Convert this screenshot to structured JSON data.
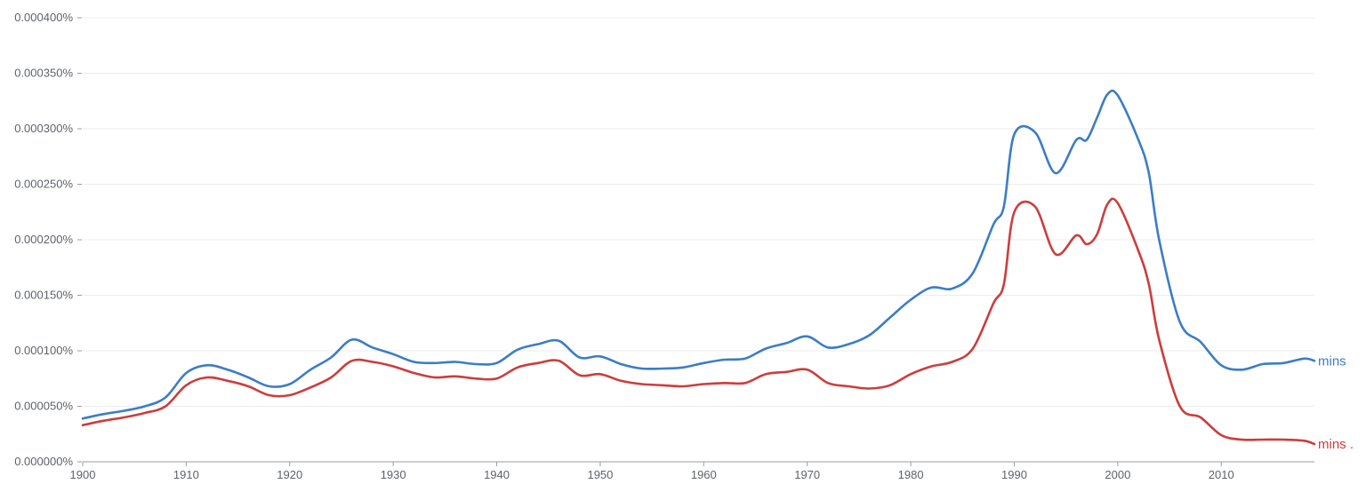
{
  "chart_data": {
    "type": "line",
    "title": "",
    "xlabel": "",
    "ylabel": "",
    "xlim": [
      1900,
      2019
    ],
    "ylim": [
      0,
      4e-06
    ],
    "x_ticks": [
      1900,
      1910,
      1920,
      1930,
      1940,
      1950,
      1960,
      1970,
      1980,
      1990,
      2000,
      2010
    ],
    "x_tick_labels": [
      "1900",
      "1910",
      "1920",
      "1930",
      "1940",
      "1950",
      "1960",
      "1970",
      "1980",
      "1990",
      "2000",
      "2010"
    ],
    "y_ticks": [
      0,
      5e-07,
      1e-06,
      1.5e-06,
      2e-06,
      2.5e-06,
      3e-06,
      3.5e-06,
      4e-06
    ],
    "y_tick_labels": [
      "0.000000%",
      "0.000050%",
      "0.000100%",
      "0.000150%",
      "0.000200%",
      "0.000250%",
      "0.000300%",
      "0.000350%",
      "0.000400%"
    ],
    "grid": true,
    "legend": "labels at line ends (right)",
    "series": [
      {
        "name": "mins",
        "color": "#3b7dc6",
        "points": [
          [
            1900,
            3.9e-07
          ],
          [
            1902,
            4.3e-07
          ],
          [
            1904,
            4.6e-07
          ],
          [
            1906,
            5e-07
          ],
          [
            1908,
            5.8e-07
          ],
          [
            1910,
            8e-07
          ],
          [
            1912,
            8.7e-07
          ],
          [
            1914,
            8.3e-07
          ],
          [
            1916,
            7.6e-07
          ],
          [
            1918,
            6.8e-07
          ],
          [
            1920,
            7e-07
          ],
          [
            1922,
            8.3e-07
          ],
          [
            1924,
            9.4e-07
          ],
          [
            1926,
            1.1e-06
          ],
          [
            1928,
            1.03e-06
          ],
          [
            1930,
            9.7e-07
          ],
          [
            1932,
            9e-07
          ],
          [
            1934,
            8.9e-07
          ],
          [
            1936,
            9e-07
          ],
          [
            1938,
            8.8e-07
          ],
          [
            1940,
            8.9e-07
          ],
          [
            1942,
            1.01e-06
          ],
          [
            1944,
            1.06e-06
          ],
          [
            1946,
            1.09e-06
          ],
          [
            1948,
            9.4e-07
          ],
          [
            1950,
            9.5e-07
          ],
          [
            1952,
            8.8e-07
          ],
          [
            1954,
            8.4e-07
          ],
          [
            1956,
            8.4e-07
          ],
          [
            1958,
            8.5e-07
          ],
          [
            1960,
            8.9e-07
          ],
          [
            1962,
            9.2e-07
          ],
          [
            1964,
            9.3e-07
          ],
          [
            1966,
            1.02e-06
          ],
          [
            1968,
            1.07e-06
          ],
          [
            1970,
            1.13e-06
          ],
          [
            1972,
            1.03e-06
          ],
          [
            1974,
            1.06e-06
          ],
          [
            1976,
            1.14e-06
          ],
          [
            1978,
            1.3e-06
          ],
          [
            1980,
            1.46e-06
          ],
          [
            1982,
            1.57e-06
          ],
          [
            1984,
            1.56e-06
          ],
          [
            1986,
            1.7e-06
          ],
          [
            1988,
            2.14e-06
          ],
          [
            1989,
            2.3e-06
          ],
          [
            1990,
            2.95e-06
          ],
          [
            1992,
            2.97e-06
          ],
          [
            1994,
            2.6e-06
          ],
          [
            1996,
            2.9e-06
          ],
          [
            1997,
            2.9e-06
          ],
          [
            1998,
            3.1e-06
          ],
          [
            1999,
            3.31e-06
          ],
          [
            2000,
            3.3e-06
          ],
          [
            2002,
            2.9e-06
          ],
          [
            2003,
            2.6e-06
          ],
          [
            2004,
            2e-06
          ],
          [
            2006,
            1.26e-06
          ],
          [
            2008,
            1.08e-06
          ],
          [
            2010,
            8.7e-07
          ],
          [
            2012,
            8.3e-07
          ],
          [
            2014,
            8.8e-07
          ],
          [
            2016,
            8.9e-07
          ],
          [
            2018,
            9.3e-07
          ],
          [
            2019,
            9.1e-07
          ]
        ]
      },
      {
        "name": "mins .",
        "color": "#cc3d3d",
        "points": [
          [
            1900,
            3.3e-07
          ],
          [
            1902,
            3.7e-07
          ],
          [
            1904,
            4e-07
          ],
          [
            1906,
            4.4e-07
          ],
          [
            1908,
            5e-07
          ],
          [
            1910,
            6.9e-07
          ],
          [
            1912,
            7.6e-07
          ],
          [
            1914,
            7.3e-07
          ],
          [
            1916,
            6.8e-07
          ],
          [
            1918,
            6e-07
          ],
          [
            1920,
            6e-07
          ],
          [
            1922,
            6.7e-07
          ],
          [
            1924,
            7.6e-07
          ],
          [
            1926,
            9.1e-07
          ],
          [
            1928,
            9e-07
          ],
          [
            1930,
            8.6e-07
          ],
          [
            1932,
            8e-07
          ],
          [
            1934,
            7.6e-07
          ],
          [
            1936,
            7.7e-07
          ],
          [
            1938,
            7.5e-07
          ],
          [
            1940,
            7.5e-07
          ],
          [
            1942,
            8.5e-07
          ],
          [
            1944,
            8.9e-07
          ],
          [
            1946,
            9.1e-07
          ],
          [
            1948,
            7.8e-07
          ],
          [
            1950,
            7.9e-07
          ],
          [
            1952,
            7.3e-07
          ],
          [
            1954,
            7e-07
          ],
          [
            1956,
            6.9e-07
          ],
          [
            1958,
            6.8e-07
          ],
          [
            1960,
            7e-07
          ],
          [
            1962,
            7.1e-07
          ],
          [
            1964,
            7.1e-07
          ],
          [
            1966,
            7.9e-07
          ],
          [
            1968,
            8.1e-07
          ],
          [
            1970,
            8.3e-07
          ],
          [
            1972,
            7.1e-07
          ],
          [
            1974,
            6.8e-07
          ],
          [
            1976,
            6.6e-07
          ],
          [
            1978,
            6.9e-07
          ],
          [
            1980,
            7.9e-07
          ],
          [
            1982,
            8.6e-07
          ],
          [
            1984,
            9e-07
          ],
          [
            1986,
            1.02e-06
          ],
          [
            1988,
            1.43e-06
          ],
          [
            1989,
            1.6e-06
          ],
          [
            1990,
            2.25e-06
          ],
          [
            1992,
            2.3e-06
          ],
          [
            1994,
            1.87e-06
          ],
          [
            1996,
            2.04e-06
          ],
          [
            1997,
            1.96e-06
          ],
          [
            1998,
            2.05e-06
          ],
          [
            1999,
            2.32e-06
          ],
          [
            2000,
            2.33e-06
          ],
          [
            2002,
            1.9e-06
          ],
          [
            2003,
            1.6e-06
          ],
          [
            2004,
            1.1e-06
          ],
          [
            2006,
            5e-07
          ],
          [
            2008,
            4e-07
          ],
          [
            2010,
            2.4e-07
          ],
          [
            2012,
            2e-07
          ],
          [
            2014,
            2e-07
          ],
          [
            2016,
            2e-07
          ],
          [
            2018,
            1.9e-07
          ],
          [
            2019,
            1.6e-07
          ]
        ]
      }
    ]
  }
}
